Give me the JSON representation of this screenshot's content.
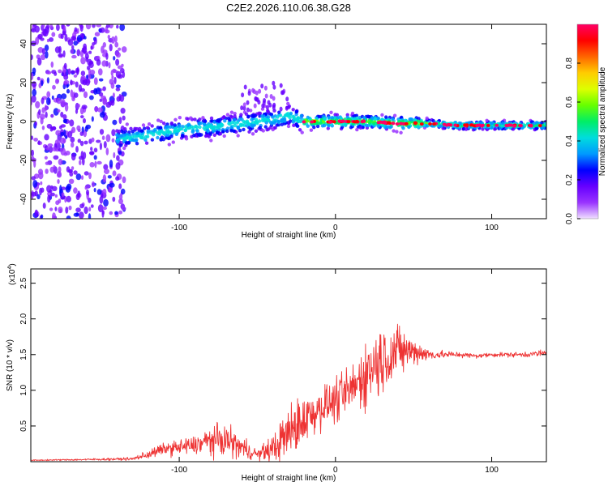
{
  "title": "C2E2.2026.110.06.38.G28",
  "chart_data": [
    {
      "type": "heatmap",
      "xlabel": "Height of straight line (km)",
      "ylabel": "Frequency (Hz)",
      "xlim": [
        -195,
        135
      ],
      "ylim": [
        -50,
        50
      ],
      "xticks": [
        -100,
        0,
        100
      ],
      "xtick_labels": [
        "-100",
        "0",
        "100"
      ],
      "yticks": [
        40,
        20,
        0,
        -20,
        -40
      ],
      "ytick_labels": [
        "40",
        "20",
        "0",
        "-20",
        "-40"
      ],
      "colorbar": {
        "label": "Normalized spectral amplitude",
        "range": [
          0,
          1
        ],
        "ticks": [
          0.0,
          0.2,
          0.4,
          0.6,
          0.8
        ],
        "tick_labels": [
          "0.0",
          "0.2",
          "0.4",
          "0.6",
          "0.8"
        ],
        "colors": [
          "#f0e0ff",
          "#9933ff",
          "#6600ff",
          "#0000ff",
          "#0099ff",
          "#00dddd",
          "#00ee66",
          "#66ff00",
          "#ddff00",
          "#ffcc00",
          "#ff6600",
          "#ff0000",
          "#ff0066"
        ]
      },
      "ridge": {
        "x": [
          -140,
          -120,
          -100,
          -80,
          -60,
          -40,
          -30,
          -20,
          0,
          20,
          40,
          60,
          80,
          100,
          135
        ],
        "frequency": [
          -9,
          -7,
          -4,
          -3,
          -1,
          1,
          3,
          0,
          0,
          0,
          -1,
          -1,
          -2,
          -2,
          -2
        ]
      }
    },
    {
      "type": "line",
      "xlabel": "Height of straight line (km)",
      "ylabel": "SNR (10 * v/v)",
      "multiplier_label": "(x10",
      "multiplier_exponent": "4",
      "xlim": [
        -195,
        135
      ],
      "ylim": [
        0,
        2.7
      ],
      "xticks": [
        -100,
        0,
        100
      ],
      "xtick_labels": [
        "-100",
        "0",
        "100"
      ],
      "yticks": [
        0.5,
        1.0,
        1.5,
        2.0,
        2.5
      ],
      "ytick_labels": [
        "0.5",
        "1.0",
        "1.5",
        "2.0",
        "2.5"
      ],
      "series": [
        {
          "name": "SNR",
          "color": "#ee3333",
          "x": [
            -195,
            -160,
            -130,
            -120,
            -110,
            -100,
            -90,
            -80,
            -70,
            -60,
            -50,
            -40,
            -30,
            -20,
            -10,
            0,
            10,
            20,
            30,
            40,
            50,
            60,
            70,
            80,
            90,
            100,
            110,
            120,
            135
          ],
          "y": [
            0.02,
            0.03,
            0.04,
            0.1,
            0.18,
            0.2,
            0.23,
            0.3,
            0.3,
            0.2,
            0.1,
            0.18,
            0.4,
            0.6,
            0.75,
            0.85,
            1.0,
            1.25,
            1.45,
            1.55,
            1.55,
            1.5,
            1.5,
            1.5,
            1.48,
            1.5,
            1.5,
            1.5,
            1.52
          ],
          "spread": [
            0.01,
            0.02,
            0.03,
            0.1,
            0.12,
            0.18,
            0.2,
            0.3,
            0.35,
            0.25,
            0.12,
            0.3,
            0.6,
            0.55,
            0.45,
            0.45,
            0.55,
            0.7,
            0.8,
            0.55,
            0.3,
            0.12,
            0.08,
            0.06,
            0.05,
            0.05,
            0.05,
            0.06,
            0.08
          ]
        }
      ]
    }
  ]
}
